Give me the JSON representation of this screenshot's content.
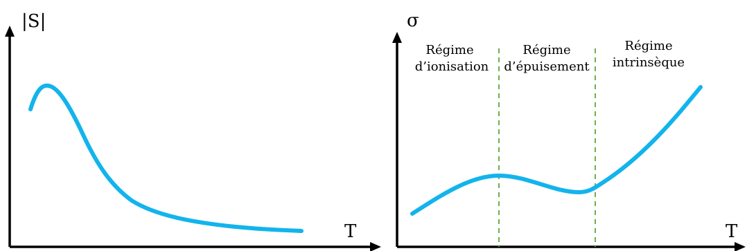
{
  "colors": {
    "curve": "#12b4ec",
    "axis": "#000000",
    "divider": "#6ab04c",
    "background": "#ffffff"
  },
  "chart_data": [
    {
      "type": "line",
      "title": "",
      "xlabel": "T",
      "ylabel": "|S|",
      "ticks": "none",
      "grid": false,
      "legend": "none",
      "series": [
        {
          "values_shape": "rises quickly to a sharp peak at low T, then decays and flattens toward a small asymptotic value"
        }
      ]
    },
    {
      "type": "line",
      "title": "",
      "xlabel": "T",
      "ylabel": "σ",
      "ticks": "none",
      "grid": false,
      "legend": "none",
      "regions": [
        {
          "line1": "Régime",
          "line2": "d’ionisation"
        },
        {
          "line1": "Régime",
          "line2": "d’épuisement"
        },
        {
          "line1": "Régime",
          "line2": "intrinsèque"
        }
      ],
      "region_boundaries": 2,
      "series": [
        {
          "values_shape": "increases to a gentle maximum at the first boundary, dips slightly until the second boundary, then rises steeply"
        }
      ]
    }
  ]
}
